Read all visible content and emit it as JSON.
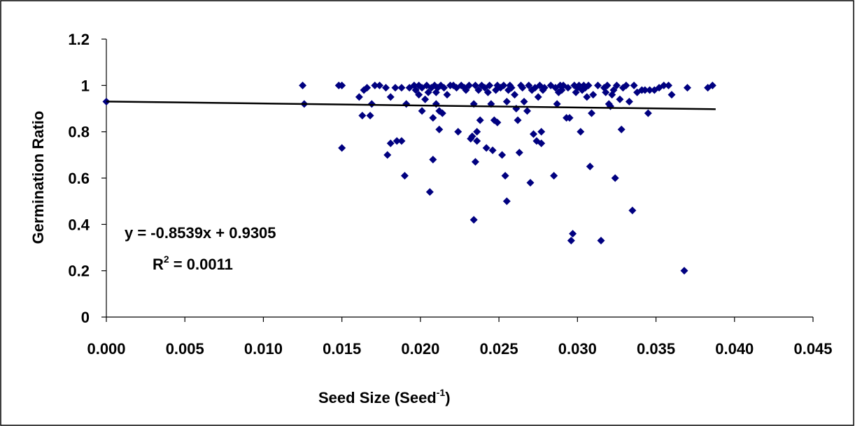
{
  "chart_data": {
    "type": "scatter",
    "title": "",
    "xlabel_main": "Seed Size (Seed",
    "xlabel_sup": "-1",
    "xlabel_close": ")",
    "ylabel": "Germination Ratio",
    "xlim": [
      0.0,
      0.045
    ],
    "ylim": [
      0,
      1.2
    ],
    "x_ticks": [
      "0.000",
      "0.005",
      "0.010",
      "0.015",
      "0.020",
      "0.025",
      "0.030",
      "0.035",
      "0.040",
      "0.045"
    ],
    "y_ticks": [
      "0",
      "0.2",
      "0.4",
      "0.6",
      "0.8",
      "1",
      "1.2"
    ],
    "grid": false,
    "legend": "none",
    "marker_color": "#000080",
    "trendline": {
      "slope": -0.8539,
      "intercept": 0.9305,
      "x_range": [
        0.0,
        0.0388
      ],
      "color": "#000000"
    },
    "equation_label": "y = -0.8539x + 0.9305",
    "r2_label_prefix": "R",
    "r2_label_sup": "2",
    "r2_label_suffix": " = 0.0011",
    "points": [
      [
        0.0,
        0.93
      ],
      [
        0.0125,
        1.0
      ],
      [
        0.0126,
        0.92
      ],
      [
        0.0148,
        1.0
      ],
      [
        0.015,
        1.0
      ],
      [
        0.015,
        0.73
      ],
      [
        0.0161,
        0.95
      ],
      [
        0.0163,
        0.87
      ],
      [
        0.0164,
        0.98
      ],
      [
        0.0166,
        0.99
      ],
      [
        0.0168,
        0.87
      ],
      [
        0.0169,
        0.92
      ],
      [
        0.0171,
        1.0
      ],
      [
        0.0174,
        1.0
      ],
      [
        0.0178,
        0.99
      ],
      [
        0.0179,
        0.7
      ],
      [
        0.0181,
        0.95
      ],
      [
        0.0181,
        0.75
      ],
      [
        0.0184,
        0.99
      ],
      [
        0.0185,
        0.76
      ],
      [
        0.0188,
        0.76
      ],
      [
        0.0188,
        0.99
      ],
      [
        0.019,
        0.61
      ],
      [
        0.0191,
        0.92
      ],
      [
        0.0193,
        0.99
      ],
      [
        0.0196,
        1.0
      ],
      [
        0.0197,
        0.98
      ],
      [
        0.0199,
        0.96
      ],
      [
        0.0199,
        1.0
      ],
      [
        0.0201,
        0.99
      ],
      [
        0.0201,
        0.89
      ],
      [
        0.0203,
        0.94
      ],
      [
        0.0204,
        1.0
      ],
      [
        0.0205,
        0.97
      ],
      [
        0.0206,
        0.54
      ],
      [
        0.0207,
        0.99
      ],
      [
        0.0208,
        0.86
      ],
      [
        0.0208,
        0.68
      ],
      [
        0.0209,
        1.0
      ],
      [
        0.021,
        0.97
      ],
      [
        0.021,
        0.92
      ],
      [
        0.0211,
        0.99
      ],
      [
        0.0212,
        0.81
      ],
      [
        0.0212,
        0.89
      ],
      [
        0.0213,
        1.0
      ],
      [
        0.0214,
        0.88
      ],
      [
        0.0215,
        0.99
      ],
      [
        0.0217,
        0.96
      ],
      [
        0.0219,
        1.0
      ],
      [
        0.0221,
        1.0
      ],
      [
        0.0223,
        0.99
      ],
      [
        0.0224,
        0.8
      ],
      [
        0.0226,
        1.0
      ],
      [
        0.0228,
        0.99
      ],
      [
        0.0229,
        0.98
      ],
      [
        0.0231,
        1.0
      ],
      [
        0.0232,
        0.77
      ],
      [
        0.0233,
        0.78
      ],
      [
        0.0234,
        0.92
      ],
      [
        0.0234,
        0.42
      ],
      [
        0.0235,
        0.67
      ],
      [
        0.0235,
        1.0
      ],
      [
        0.0236,
        0.8
      ],
      [
        0.0236,
        0.76
      ],
      [
        0.0237,
        0.98
      ],
      [
        0.0238,
        0.85
      ],
      [
        0.0239,
        1.0
      ],
      [
        0.0241,
        0.99
      ],
      [
        0.0242,
        0.73
      ],
      [
        0.0243,
        0.97
      ],
      [
        0.0244,
        1.0
      ],
      [
        0.0245,
        0.92
      ],
      [
        0.0246,
        0.72
      ],
      [
        0.0247,
        0.85
      ],
      [
        0.0248,
        0.98
      ],
      [
        0.0249,
        0.84
      ],
      [
        0.0249,
        1.0
      ],
      [
        0.0251,
        0.99
      ],
      [
        0.0252,
        0.7
      ],
      [
        0.0253,
        1.0
      ],
      [
        0.0254,
        0.61
      ],
      [
        0.0255,
        0.93
      ],
      [
        0.0255,
        0.5
      ],
      [
        0.0256,
        0.98
      ],
      [
        0.0257,
        1.0
      ],
      [
        0.0258,
        0.99
      ],
      [
        0.026,
        0.96
      ],
      [
        0.0261,
        0.9
      ],
      [
        0.0262,
        0.85
      ],
      [
        0.0263,
        0.71
      ],
      [
        0.0264,
        1.0
      ],
      [
        0.0265,
        0.99
      ],
      [
        0.0266,
        0.93
      ],
      [
        0.0268,
        0.89
      ],
      [
        0.0269,
        1.0
      ],
      [
        0.027,
        0.58
      ],
      [
        0.0271,
        0.98
      ],
      [
        0.0272,
        0.79
      ],
      [
        0.0273,
        0.99
      ],
      [
        0.0274,
        0.76
      ],
      [
        0.0275,
        0.95
      ],
      [
        0.0276,
        1.0
      ],
      [
        0.0277,
        0.8
      ],
      [
        0.0277,
        0.75
      ],
      [
        0.0278,
        0.98
      ],
      [
        0.0279,
        0.99
      ],
      [
        0.0283,
        1.0
      ],
      [
        0.0285,
        0.61
      ],
      [
        0.0286,
        0.99
      ],
      [
        0.0287,
        0.92
      ],
      [
        0.0288,
        0.97
      ],
      [
        0.0289,
        1.0
      ],
      [
        0.029,
        0.98
      ],
      [
        0.0291,
        1.0
      ],
      [
        0.0293,
        0.86
      ],
      [
        0.0294,
        0.99
      ],
      [
        0.0295,
        0.86
      ],
      [
        0.0296,
        0.33
      ],
      [
        0.0297,
        0.36
      ],
      [
        0.0298,
        1.0
      ],
      [
        0.0299,
        0.97
      ],
      [
        0.03,
        0.99
      ],
      [
        0.0301,
        1.0
      ],
      [
        0.0302,
        0.8
      ],
      [
        0.0303,
        0.98
      ],
      [
        0.0304,
        1.0
      ],
      [
        0.0305,
        0.99
      ],
      [
        0.0306,
        0.95
      ],
      [
        0.0307,
        1.0
      ],
      [
        0.0308,
        0.65
      ],
      [
        0.0309,
        0.88
      ],
      [
        0.031,
        0.96
      ],
      [
        0.0313,
        1.0
      ],
      [
        0.0315,
        0.33
      ],
      [
        0.0317,
        0.99
      ],
      [
        0.0318,
        0.97
      ],
      [
        0.0319,
        1.0
      ],
      [
        0.032,
        0.92
      ],
      [
        0.0321,
        0.91
      ],
      [
        0.0322,
        0.96
      ],
      [
        0.0323,
        0.98
      ],
      [
        0.0324,
        0.6
      ],
      [
        0.0325,
        1.0
      ],
      [
        0.0327,
        0.94
      ],
      [
        0.0328,
        0.81
      ],
      [
        0.0329,
        0.99
      ],
      [
        0.0331,
        1.0
      ],
      [
        0.0333,
        0.93
      ],
      [
        0.0335,
        0.46
      ],
      [
        0.0336,
        1.0
      ],
      [
        0.0338,
        0.97
      ],
      [
        0.0341,
        0.98
      ],
      [
        0.0343,
        0.98
      ],
      [
        0.0345,
        0.88
      ],
      [
        0.0346,
        0.98
      ],
      [
        0.0349,
        0.98
      ],
      [
        0.0352,
        0.99
      ],
      [
        0.0355,
        1.0
      ],
      [
        0.0358,
        1.0
      ],
      [
        0.036,
        0.96
      ],
      [
        0.0368,
        0.2
      ],
      [
        0.037,
        0.99
      ],
      [
        0.0383,
        0.99
      ],
      [
        0.0386,
        1.0
      ]
    ]
  }
}
